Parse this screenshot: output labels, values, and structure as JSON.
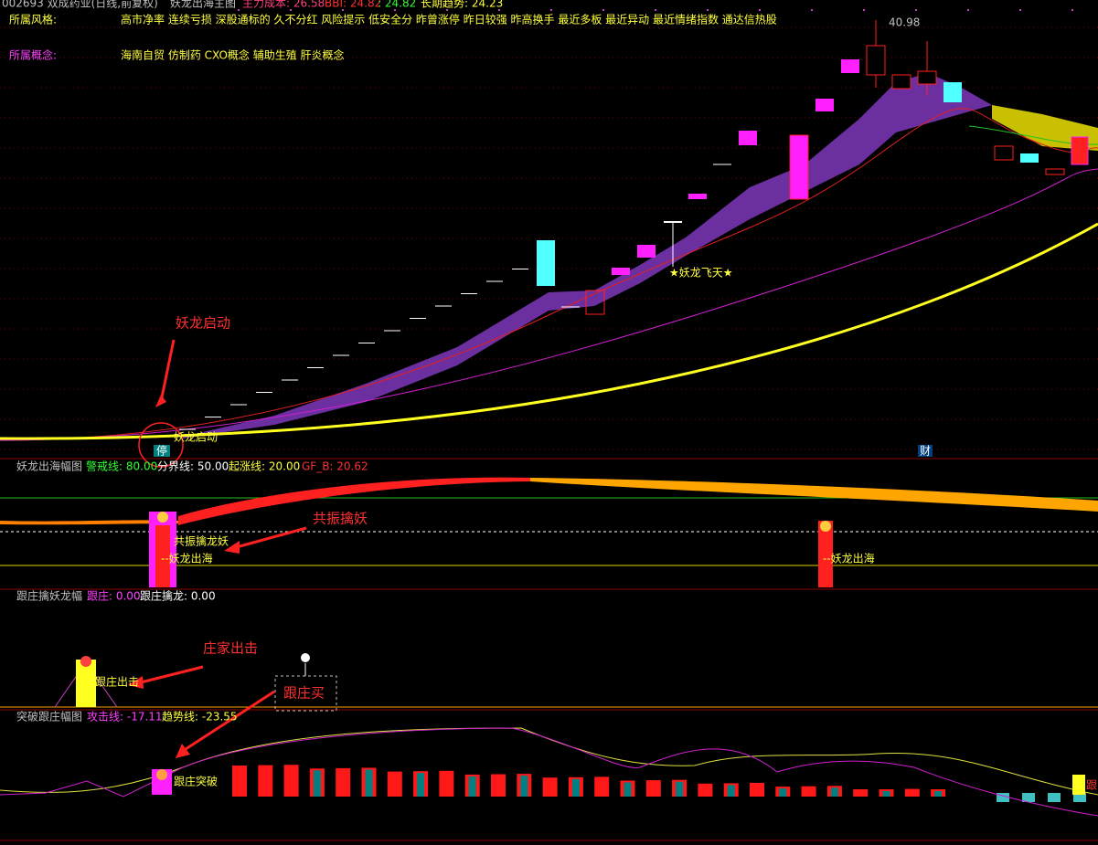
{
  "header": {
    "stock": "002693 双成药业(日线,前复权)",
    "main_chart": "妖龙出海主图",
    "cost": "主力成本: 26.58",
    "bbi": "BBI: 24.82",
    "bbi2": ": 24.82",
    "trend": "长期趋势: 24.23"
  },
  "style_row": {
    "label": "所属风格:",
    "text": "高市净率 连续亏损 深股通标的 久不分红 风险提示 低安全分 昨曾涨停 昨日较强 昨高换手 最近多板 最近异动 最近情绪指数 通达信热股"
  },
  "concept_row": {
    "label": "所属概念:",
    "text": "海南自贸 仿制药 CXO概念 辅助生殖 肝炎概念"
  },
  "main_panel": {
    "peak": "40.98",
    "annotation": "妖龙启动",
    "signal": "★妖龙飞天★",
    "start_label": "妖龙启动",
    "stop_badge": "停",
    "fin_badge": "财"
  },
  "panel2": {
    "title": "妖龙出海幅图",
    "warn": "警戒线: 80.00",
    "divide": "分界线: 50.00",
    "rise": "起涨线: 20.00",
    "gfb": "GF_B: 20.62",
    "resonance": "共振擒龙妖",
    "out1": "--妖龙出海",
    "out2": "--妖龙出海",
    "annotation": "共振擒妖"
  },
  "panel3": {
    "title": "跟庄擒妖龙幅",
    "follow": "跟庄: 0.00",
    "follow_dragon": "跟庄擒龙: 0.00",
    "strike": "跟庄出击",
    "annotation": "庄家出击",
    "buy": "跟庄买"
  },
  "panel4": {
    "title": "突破跟庄幅图",
    "attack": "攻击线: -17.11",
    "trend": "趋势线: -23.55",
    "breakout": "跟庄突破",
    "edge": "跟"
  }
}
